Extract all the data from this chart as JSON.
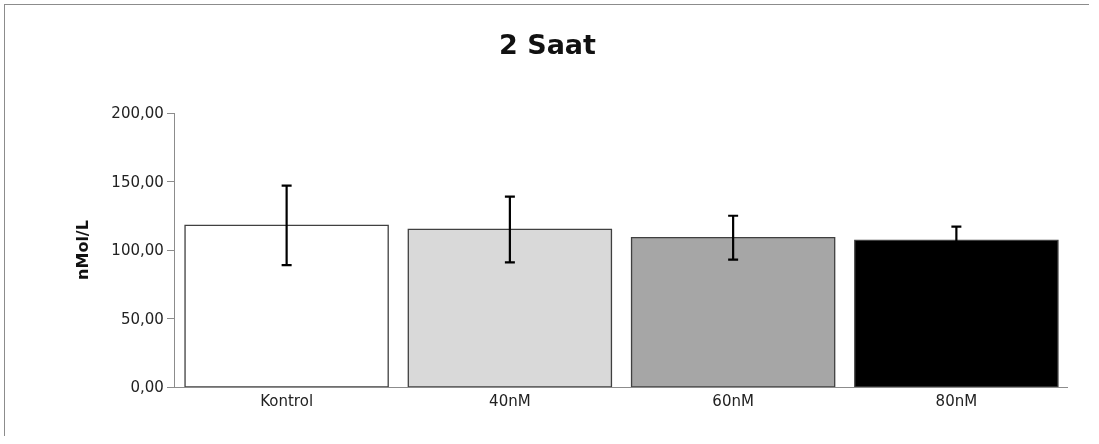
{
  "chart_data": {
    "type": "bar",
    "title": "2 Saat",
    "ylabel": "nMol/L",
    "categories": [
      "Kontrol",
      "40nM",
      "60nM",
      "80nM"
    ],
    "values": [
      118,
      115,
      109,
      107
    ],
    "errors": [
      29,
      24,
      16,
      10
    ],
    "colors": [
      "#ffffff",
      "#d9d9d9",
      "#a6a6a6",
      "#000000"
    ],
    "ylim": [
      0,
      200
    ],
    "yticks": [
      {
        "value": 0,
        "label": "0,00"
      },
      {
        "value": 50,
        "label": "50,00"
      },
      {
        "value": 100,
        "label": "100,00"
      },
      {
        "value": 150,
        "label": "150,00"
      },
      {
        "value": 200,
        "label": "200,00"
      }
    ],
    "grid": false
  }
}
